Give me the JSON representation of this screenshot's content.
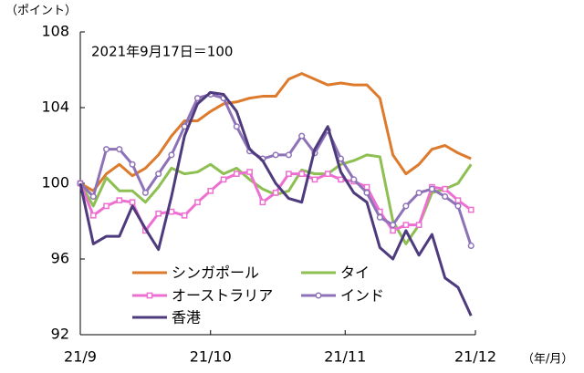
{
  "chart_data": {
    "type": "line",
    "annotation": "2021年9月17日＝100",
    "y_label": "（ポイント）",
    "x_label": "（年/月）",
    "x": [
      0,
      3,
      6,
      9,
      12,
      15,
      18,
      21,
      24,
      27,
      30,
      33,
      36,
      39,
      42,
      45,
      48,
      51,
      54,
      57,
      60,
      63,
      66,
      69,
      72,
      75,
      78,
      81,
      84,
      87,
      90
    ],
    "xlim": [
      0,
      91
    ],
    "xticks": [
      {
        "value": 0,
        "label": "21/9"
      },
      {
        "value": 30,
        "label": "21/10"
      },
      {
        "value": 61,
        "label": "21/11"
      },
      {
        "value": 91,
        "label": "21/12"
      }
    ],
    "ylim": [
      92,
      108
    ],
    "yticks": [
      92,
      96,
      100,
      104,
      108
    ],
    "grid": false,
    "series": [
      {
        "name": "シンガポール",
        "color": "#dd7a2b",
        "marker": "none",
        "values": [
          100,
          99.6,
          100.5,
          101,
          100.4,
          100.8,
          101.5,
          102.5,
          103.3,
          103.3,
          103.8,
          104.2,
          104.3,
          104.5,
          104.6,
          104.6,
          105.5,
          105.8,
          105.5,
          105.2,
          105.3,
          105.2,
          105.2,
          104.5,
          101.5,
          100.5,
          101,
          101.8,
          102,
          101.6,
          101.3
        ]
      },
      {
        "name": "タイ",
        "color": "#8dbf52",
        "marker": "none",
        "values": [
          100,
          98.8,
          100.3,
          99.6,
          99.6,
          99,
          99.8,
          100.8,
          100.5,
          100.6,
          101,
          100.5,
          100.8,
          100.2,
          99.7,
          99.4,
          99.6,
          100.7,
          100.5,
          100.5,
          101,
          101.2,
          101.5,
          101.4,
          98,
          96.8,
          97.8,
          99.5,
          99.7,
          100,
          101
        ]
      },
      {
        "name": "オーストラリア",
        "color": "#ee6fd2",
        "marker": "square",
        "values": [
          100,
          98.3,
          98.8,
          99.1,
          99,
          97.5,
          98.4,
          98.5,
          98.3,
          99,
          99.6,
          100.2,
          100.5,
          100.6,
          99,
          99.5,
          100.5,
          100.5,
          100.2,
          100.5,
          100.2,
          100.1,
          99.8,
          98.5,
          97.5,
          97.8,
          97.8,
          99.8,
          99.7,
          99.1,
          98.6
        ]
      },
      {
        "name": "インド",
        "color": "#8d72b8",
        "marker": "circle",
        "values": [
          100,
          99.3,
          101.8,
          101.8,
          101,
          99.5,
          100.5,
          101.5,
          103,
          104.5,
          104.7,
          104.5,
          103,
          101.7,
          101.3,
          101.5,
          101.5,
          102.5,
          101.6,
          102.8,
          101.3,
          100.2,
          99.5,
          98.2,
          97.8,
          98.8,
          99.5,
          99.7,
          99.3,
          98.8,
          96.7
        ]
      },
      {
        "name": "香港",
        "color": "#4e3b7d",
        "marker": "none",
        "values": [
          100,
          96.8,
          97.2,
          97.2,
          98.8,
          97.6,
          96.5,
          99.3,
          102.5,
          104.2,
          104.8,
          104.7,
          103.8,
          101.8,
          101.2,
          100,
          99.2,
          99,
          101.8,
          103,
          100.6,
          99.5,
          99,
          96.6,
          96,
          97.5,
          96.2,
          97.3,
          95,
          94.5,
          93
        ]
      }
    ]
  }
}
